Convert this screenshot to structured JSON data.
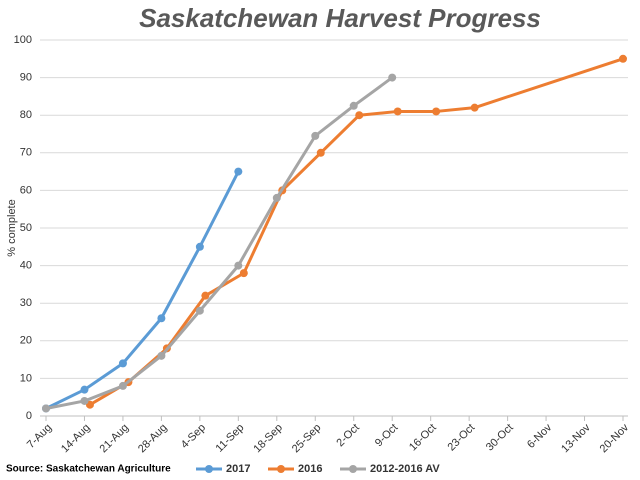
{
  "chart_data": {
    "type": "line",
    "title": "Saskatchewan Harvest Progress",
    "y_label": "% complete",
    "source": "Source: Saskatchewan Agriculture",
    "xlim": [
      "7-Aug",
      "20-Nov"
    ],
    "xticks": [
      "7-Aug",
      "14-Aug",
      "21-Aug",
      "28-Aug",
      "4-Sep",
      "11-Sep",
      "18-Sep",
      "25-Sep",
      "2-Oct",
      "9-Oct",
      "16-Oct",
      "23-Oct",
      "30-Oct",
      "6-Nov",
      "13-Nov",
      "20-Nov"
    ],
    "ylim": [
      0,
      100
    ],
    "yticks": [
      0,
      10,
      20,
      30,
      40,
      50,
      60,
      70,
      80,
      90,
      100
    ],
    "grid": true,
    "series": [
      {
        "name": "2017",
        "color": "#5b9bd5",
        "x": [
          "7-Aug",
          "14-Aug",
          "21-Aug",
          "28-Aug",
          "4-Sep",
          "11-Sep"
        ],
        "values": [
          2,
          7,
          14,
          26,
          45,
          65
        ]
      },
      {
        "name": "2016",
        "color": "#ed7d31",
        "x": [
          "15-Aug",
          "22-Aug",
          "29-Aug",
          "5-Sep",
          "12-Sep",
          "19-Sep",
          "26-Sep",
          "3-Oct",
          "10-Oct",
          "17-Oct",
          "24-Oct",
          "20-Nov"
        ],
        "values": [
          3,
          9,
          18,
          32,
          38,
          60,
          70,
          80,
          81,
          81,
          82,
          95
        ]
      },
      {
        "name": "2012-2016 AV",
        "color": "#a5a5a5",
        "x": [
          "7-Aug",
          "14-Aug",
          "21-Aug",
          "28-Aug",
          "4-Sep",
          "11-Sep",
          "18-Sep",
          "25-Sep",
          "2-Oct",
          "9-Oct"
        ],
        "values": [
          2,
          4,
          8,
          16,
          28,
          40,
          58,
          74.5,
          82.5,
          90
        ]
      }
    ]
  }
}
